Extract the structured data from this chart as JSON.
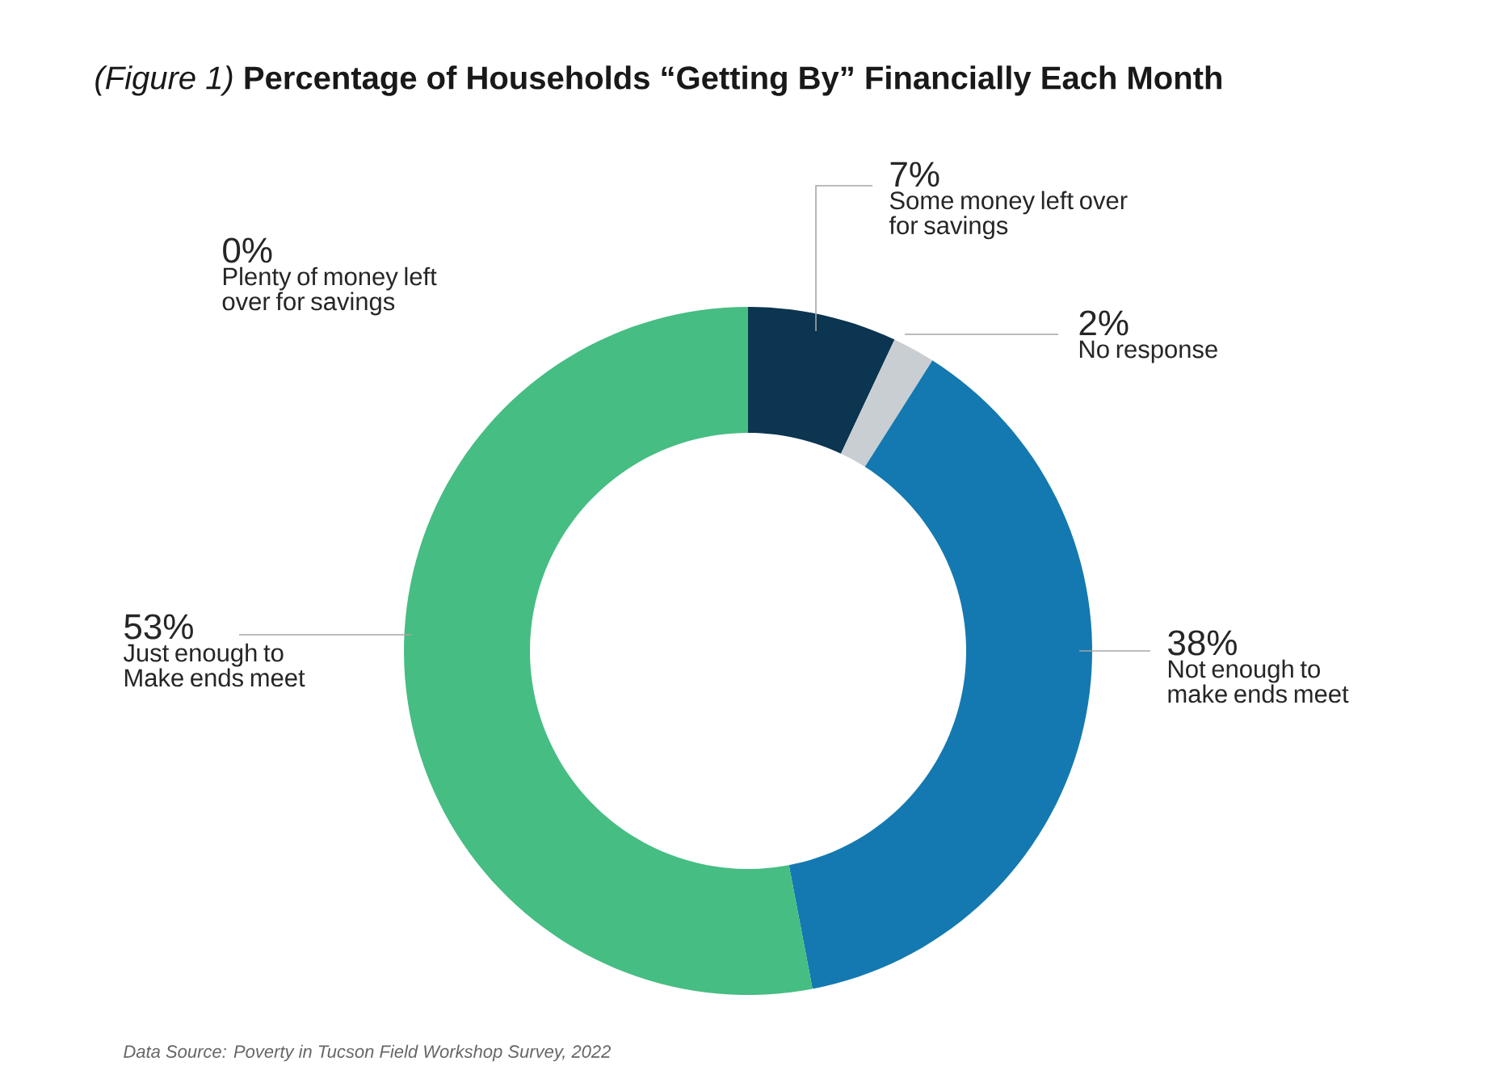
{
  "chart_data": {
    "type": "donut",
    "title": "*(Figure 1)* **Percentage of Households “Getting By” Financially Each Month**",
    "categories": [
      "Some money left over for savings",
      "No response",
      "Not enough to make ends meet",
      "Just enough to Make ends meet",
      "Plenty of money left over for savings"
    ],
    "values": [
      7,
      2,
      38,
      53,
      0
    ],
    "value_labels": [
      "7%",
      "2%",
      "38%",
      "53%",
      "0%"
    ],
    "colors": [
      "#0b3550",
      "#c8ced2",
      "#1479b0",
      "#46bd82",
      "#2e8b57"
    ],
    "annotations": [
      "Data Source: Poverty in Tucson Field Workshop Survey, 2022"
    ]
  }
}
